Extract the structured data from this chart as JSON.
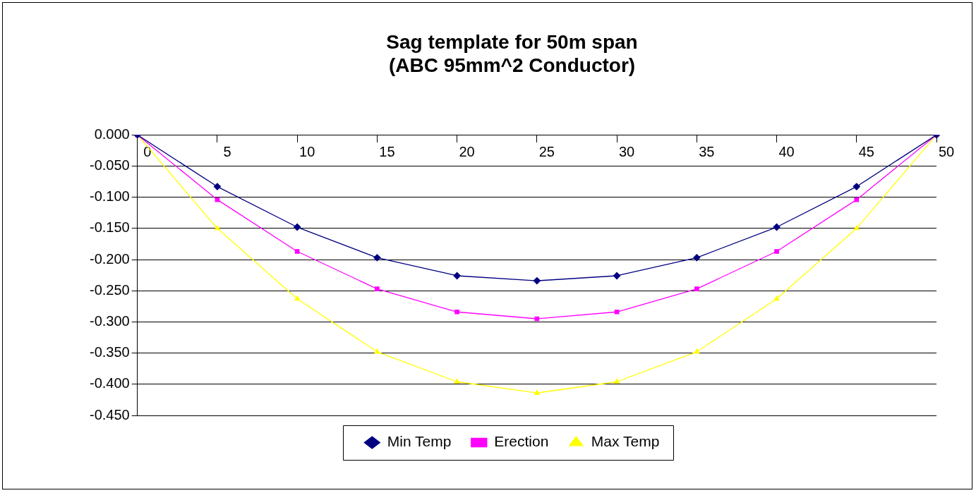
{
  "chart_data": {
    "type": "line",
    "title": "Sag template for 50m span\n(ABC 95mm^2 Conductor)",
    "categories": [
      "0",
      "5",
      "10",
      "15",
      "20",
      "25",
      "30",
      "35",
      "40",
      "45",
      "50"
    ],
    "series": [
      {
        "name": "Min Temp",
        "color": "#000080",
        "marker": "diamond",
        "values": [
          0,
          -0.083,
          -0.148,
          -0.197,
          -0.226,
          -0.234,
          -0.226,
          -0.197,
          -0.148,
          -0.083,
          0
        ]
      },
      {
        "name": "Erection",
        "color": "#ff00ff",
        "marker": "square",
        "values": [
          0,
          -0.104,
          -0.187,
          -0.247,
          -0.284,
          -0.295,
          -0.284,
          -0.247,
          -0.187,
          -0.104,
          0
        ]
      },
      {
        "name": "Max Temp",
        "color": "#ffff00",
        "marker": "triangle",
        "values": [
          0,
          -0.15,
          -0.263,
          -0.348,
          -0.396,
          -0.414,
          -0.396,
          -0.348,
          -0.263,
          -0.15,
          0
        ]
      }
    ],
    "ylim": [
      -0.45,
      0
    ],
    "yticks": [
      {
        "value": 0,
        "label": "0.000"
      },
      {
        "value": -0.05,
        "label": "-0.050"
      },
      {
        "value": -0.1,
        "label": "-0.100"
      },
      {
        "value": -0.15,
        "label": "-0.150"
      },
      {
        "value": -0.2,
        "label": "-0.200"
      },
      {
        "value": -0.25,
        "label": "-0.250"
      },
      {
        "value": -0.3,
        "label": "-0.300"
      },
      {
        "value": -0.35,
        "label": "-0.350"
      },
      {
        "value": -0.4,
        "label": "-0.400"
      },
      {
        "value": -0.45,
        "label": "-0.450"
      }
    ],
    "grid": "y",
    "legend": "bottom",
    "line_style": "solid"
  }
}
